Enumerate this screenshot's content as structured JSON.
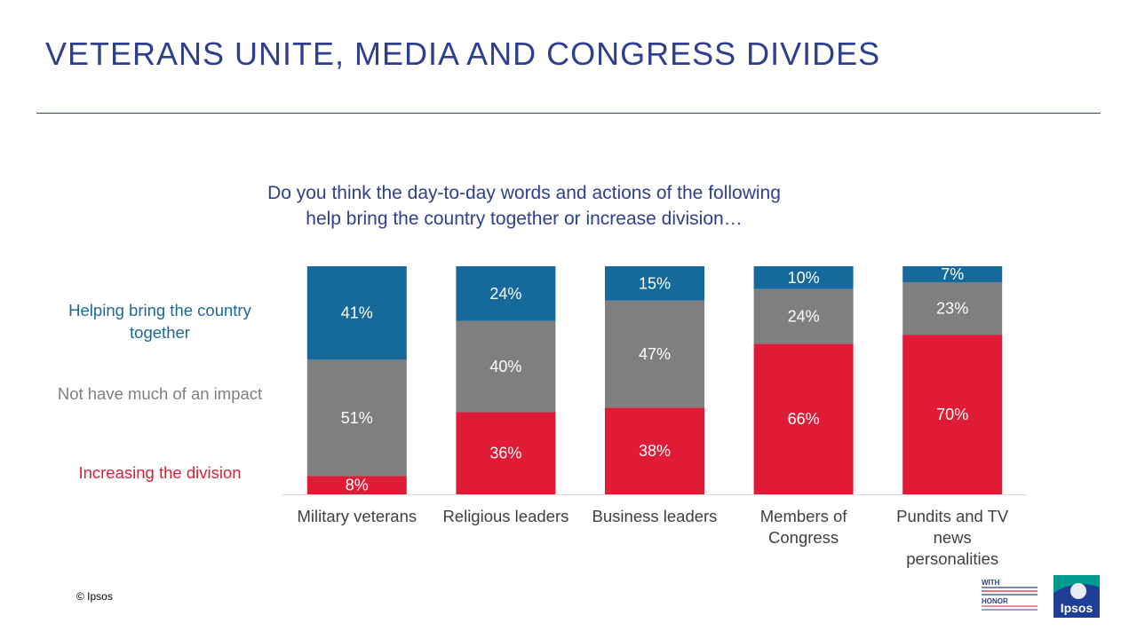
{
  "slide": {
    "title": "VETERANS UNITE, MEDIA AND CONGRESS DIVIDES",
    "copyright": "© Ipsos"
  },
  "chart_data": {
    "type": "bar",
    "stacked": true,
    "question": "Do you think the day-to-day words and actions of the following help bring the country together or increase division…",
    "categories": [
      [
        "Military veterans"
      ],
      [
        "Religious leaders"
      ],
      [
        "Business leaders"
      ],
      [
        "Members of",
        "Congress"
      ],
      [
        "Pundits and TV",
        "news",
        "personalities"
      ]
    ],
    "series": [
      {
        "name": "Increasing the division",
        "color": "#df1b36",
        "values": [
          8,
          36,
          38,
          66,
          70
        ]
      },
      {
        "name": "Not have much of an impact",
        "color": "#7f7f7f",
        "values": [
          51,
          40,
          47,
          24,
          23
        ]
      },
      {
        "name": "Helping bring the country together",
        "color": "#156a9b",
        "values": [
          41,
          24,
          15,
          10,
          7
        ]
      }
    ],
    "value_suffix": "%",
    "ylim": [
      0,
      100
    ],
    "grid": false,
    "legend_position": "left"
  },
  "legend": {
    "together": "Helping bring the country together",
    "noimpact": "Not have much of an impact",
    "division": "Increasing the division"
  },
  "logos": {
    "withhonor_top": "WITH",
    "withhonor_bottom": "HONOR",
    "ipsos": "Ipsos"
  },
  "colors": {
    "title": "#2d3f8e",
    "together_text": "#1a6a96",
    "noimpact_text": "#7f7f7f",
    "division_text": "#d91f36",
    "ipsos_green": "#009b8e",
    "ipsos_blue": "#1f3f96"
  }
}
